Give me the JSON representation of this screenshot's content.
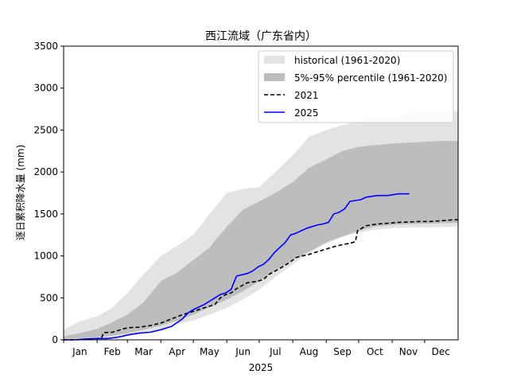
{
  "chart_data": {
    "type": "area",
    "title": "西江流域（广东省内）",
    "xlabel": "2025",
    "ylabel": "逐日累积降水量 (mm)",
    "ylim": [
      0,
      3500
    ],
    "xlim": [
      0,
      365
    ],
    "yticks": [
      0,
      500,
      1000,
      1500,
      2000,
      2500,
      3000,
      3500
    ],
    "ytick_labels": [
      "0",
      "500",
      "1000",
      "1500",
      "2000",
      "2500",
      "3000",
      "3500"
    ],
    "month_labels": [
      "Jan",
      "Feb",
      "Mar",
      "Apr",
      "May",
      "Jun",
      "Jul",
      "Aug",
      "Sep",
      "Oct",
      "Nov",
      "Dec"
    ],
    "month_ticks": [
      0,
      31,
      59,
      90,
      120,
      151,
      181,
      212,
      243,
      273,
      304,
      334
    ],
    "month_label_pos": [
      15,
      45,
      74,
      105,
      135,
      166,
      196,
      227,
      258,
      288,
      319,
      349
    ],
    "legend_position": "top-right",
    "colors": {
      "historical": "#e3e3e3",
      "percentile": "#bdbdbd",
      "y2021": "#000000",
      "y2025": "#0000ff"
    },
    "bands": [
      {
        "name": "historical (1961-2020)",
        "x": [
          0,
          15,
          31,
          45,
          59,
          74,
          90,
          105,
          120,
          135,
          151,
          166,
          181,
          196,
          212,
          227,
          243,
          258,
          273,
          288,
          304,
          319,
          334,
          349,
          365
        ],
        "lower": [
          0,
          5,
          10,
          20,
          40,
          80,
          130,
          190,
          230,
          300,
          380,
          480,
          600,
          750,
          900,
          1030,
          1150,
          1230,
          1280,
          1310,
          1330,
          1340,
          1340,
          1345,
          1350
        ],
        "upper": [
          120,
          220,
          280,
          380,
          560,
          780,
          1000,
          1120,
          1250,
          1500,
          1750,
          1800,
          1820,
          2000,
          2200,
          2420,
          2500,
          2560,
          2600,
          2650,
          2650,
          2700,
          2700,
          2720,
          2720
        ]
      },
      {
        "name": "5%-95% percentile (1961-2020)",
        "x": [
          0,
          15,
          31,
          45,
          59,
          74,
          90,
          105,
          120,
          135,
          151,
          166,
          181,
          196,
          212,
          227,
          243,
          258,
          273,
          288,
          304,
          319,
          334,
          349,
          365
        ],
        "lower": [
          10,
          20,
          30,
          50,
          80,
          120,
          170,
          230,
          300,
          390,
          480,
          580,
          700,
          830,
          950,
          1050,
          1160,
          1230,
          1300,
          1350,
          1370,
          1380,
          1385,
          1390,
          1395
        ],
        "upper": [
          40,
          80,
          130,
          210,
          300,
          450,
          700,
          800,
          950,
          1100,
          1350,
          1550,
          1650,
          1750,
          1880,
          2050,
          2150,
          2250,
          2300,
          2320,
          2340,
          2350,
          2360,
          2370,
          2370
        ]
      }
    ],
    "series": [
      {
        "name": "2021",
        "style": "dashed",
        "x": [
          0,
          10,
          20,
          30,
          35,
          37,
          45,
          55,
          60,
          70,
          80,
          90,
          100,
          110,
          120,
          130,
          140,
          145,
          150,
          155,
          160,
          170,
          180,
          185,
          190,
          200,
          210,
          215,
          220,
          225,
          230,
          240,
          250,
          260,
          265,
          270,
          272,
          280,
          290,
          300,
          310,
          320,
          330,
          340,
          350,
          360,
          365
        ],
        "values": [
          0,
          0,
          5,
          15,
          20,
          85,
          90,
          130,
          145,
          150,
          170,
          200,
          250,
          300,
          340,
          380,
          420,
          500,
          540,
          560,
          610,
          680,
          700,
          720,
          780,
          850,
          930,
          980,
          1000,
          1010,
          1030,
          1070,
          1110,
          1140,
          1150,
          1170,
          1300,
          1360,
          1380,
          1390,
          1400,
          1405,
          1410,
          1410,
          1420,
          1430,
          1430
        ]
      },
      {
        "name": "2025",
        "style": "solid",
        "x": [
          0,
          10,
          20,
          30,
          40,
          50,
          55,
          60,
          70,
          80,
          90,
          100,
          110,
          115,
          120,
          130,
          140,
          145,
          150,
          155,
          160,
          170,
          175,
          180,
          185,
          190,
          195,
          200,
          205,
          210,
          215,
          220,
          225,
          230,
          235,
          240,
          245,
          250,
          255,
          260,
          265,
          270,
          275,
          280,
          290,
          300,
          310,
          320
        ],
        "values": [
          0,
          0,
          10,
          15,
          15,
          30,
          45,
          60,
          80,
          90,
          120,
          160,
          250,
          320,
          360,
          420,
          500,
          540,
          560,
          600,
          760,
          790,
          820,
          870,
          900,
          960,
          1040,
          1100,
          1160,
          1250,
          1270,
          1300,
          1330,
          1350,
          1370,
          1380,
          1400,
          1500,
          1520,
          1560,
          1650,
          1660,
          1670,
          1700,
          1720,
          1720,
          1740,
          1740
        ]
      }
    ]
  }
}
